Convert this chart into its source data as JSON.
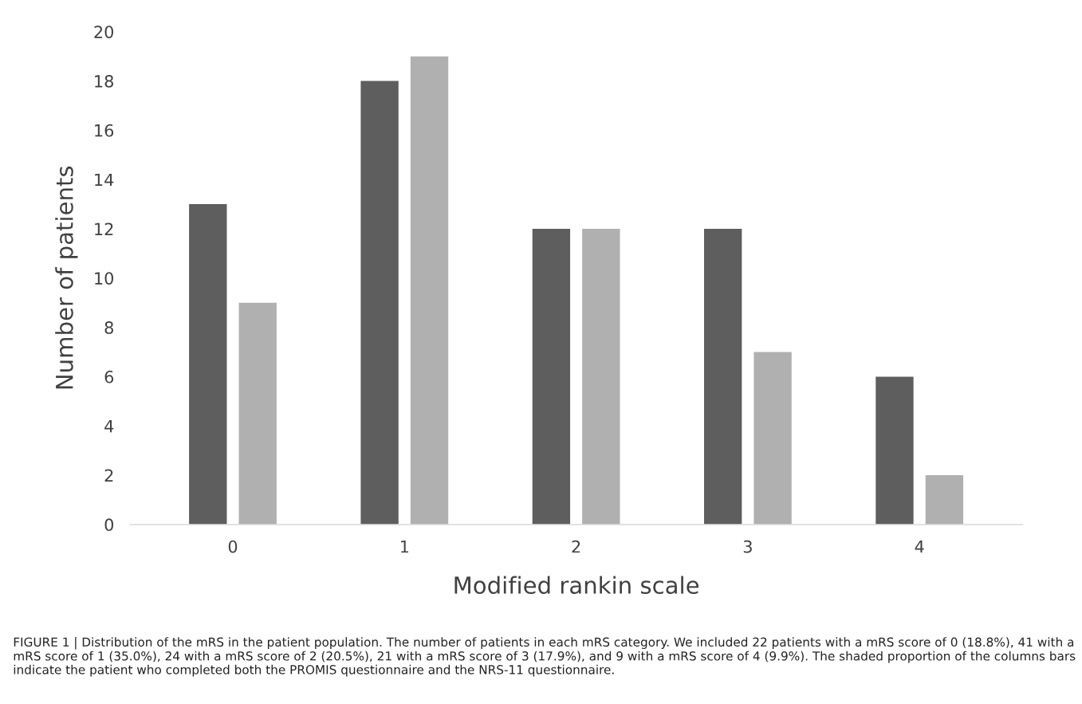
{
  "chart_data": {
    "type": "bar",
    "categories": [
      "0",
      "1",
      "2",
      "3",
      "4"
    ],
    "series": [
      {
        "color": "#5e5e5e",
        "values": [
          13,
          18,
          12,
          12,
          6
        ]
      },
      {
        "color": "#b0b0b0",
        "values": [
          9,
          19,
          12,
          7,
          2
        ]
      }
    ],
    "xlabel": "Modified rankin scale",
    "ylabel": "Number of patients",
    "ylim": [
      0,
      20
    ],
    "yticks": [
      0,
      2,
      4,
      6,
      8,
      10,
      12,
      14,
      16,
      18,
      20
    ],
    "grid": false,
    "annotations": [
      "FIGURE 1 | Distribution of the mRS in the patient population. The number of patients in each mRS category. We included 22 patients with a mRS score of 0 (18.8%), 41 with a mRS score of 1 (35.0%), 24 with a mRS score of 2 (20.5%), 21 with a mRS score of 3 (17.9%), and 9 with a mRS score of 4 (9.9%). The shaded proportion of the columns bars indicate the patient who completed both the PROMIS questionnaire and the NRS-11 questionnaire."
    ]
  }
}
